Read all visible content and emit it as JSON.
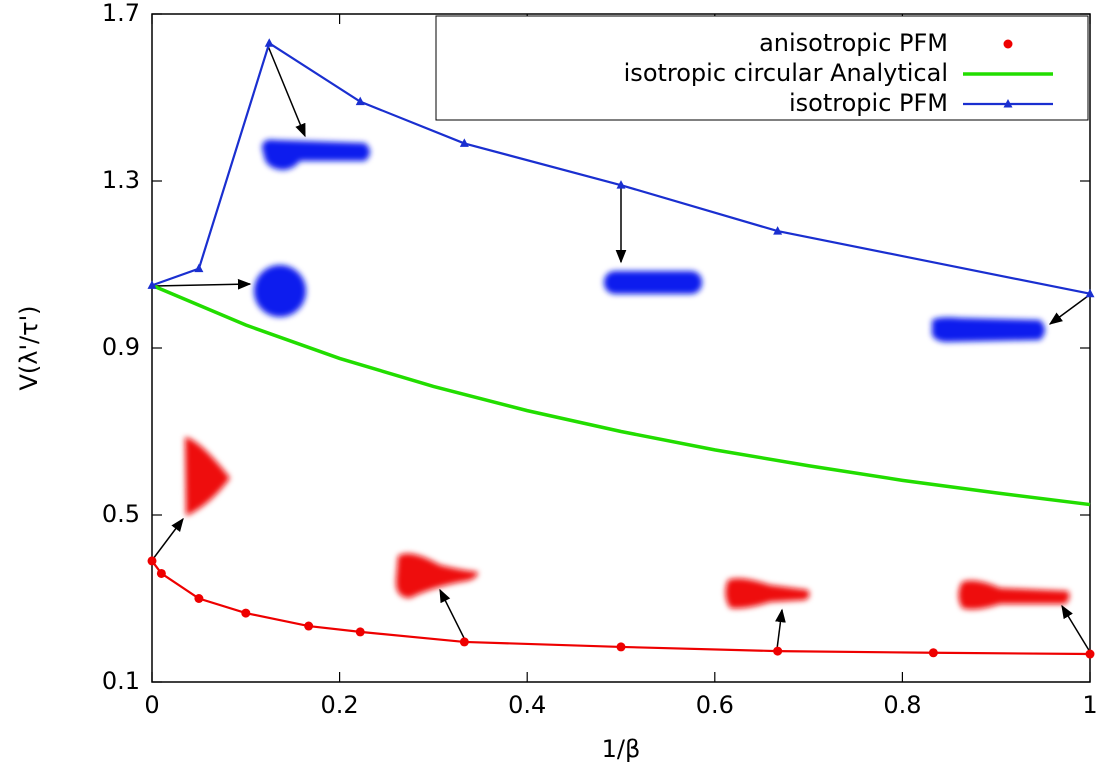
{
  "chart_data": {
    "type": "line",
    "xlabel": "1/β",
    "ylabel": "V(λ'/τ')",
    "xlim": [
      0,
      1
    ],
    "ylim": [
      0.1,
      1.7
    ],
    "xticks": [
      0,
      0.2,
      0.4,
      0.6,
      0.8,
      1
    ],
    "yticks": [
      0.1,
      0.5,
      0.9,
      1.3,
      1.7
    ],
    "legend": "upper right",
    "series": [
      {
        "name": "anisotropic PFM",
        "color": "#ee0000",
        "marker": "circle",
        "line": true,
        "x": [
          0,
          0.01,
          0.05,
          0.1,
          0.167,
          0.222,
          0.333,
          0.5,
          0.667,
          0.833,
          1
        ],
        "values": [
          0.39,
          0.36,
          0.3,
          0.265,
          0.234,
          0.22,
          0.196,
          0.184,
          0.174,
          0.17,
          0.167
        ]
      },
      {
        "name": "isotropic circular Analytical",
        "color": "#22dd00",
        "marker": "none",
        "line": true,
        "x": [
          0,
          0.1,
          0.2,
          0.3,
          0.4,
          0.5,
          0.6,
          0.7,
          0.8,
          0.9,
          1
        ],
        "values": [
          1.05,
          0.955,
          0.875,
          0.808,
          0.75,
          0.7,
          0.656,
          0.618,
          0.583,
          0.553,
          0.525
        ]
      },
      {
        "name": "isotropic PFM",
        "color": "#1a2fd0",
        "marker": "triangle",
        "line": true,
        "x": [
          0,
          0.05,
          0.125,
          0.222,
          0.333,
          0.5,
          0.667,
          1
        ],
        "values": [
          1.05,
          1.09,
          1.63,
          1.49,
          1.39,
          1.29,
          1.18,
          1.03
        ]
      }
    ]
  }
}
